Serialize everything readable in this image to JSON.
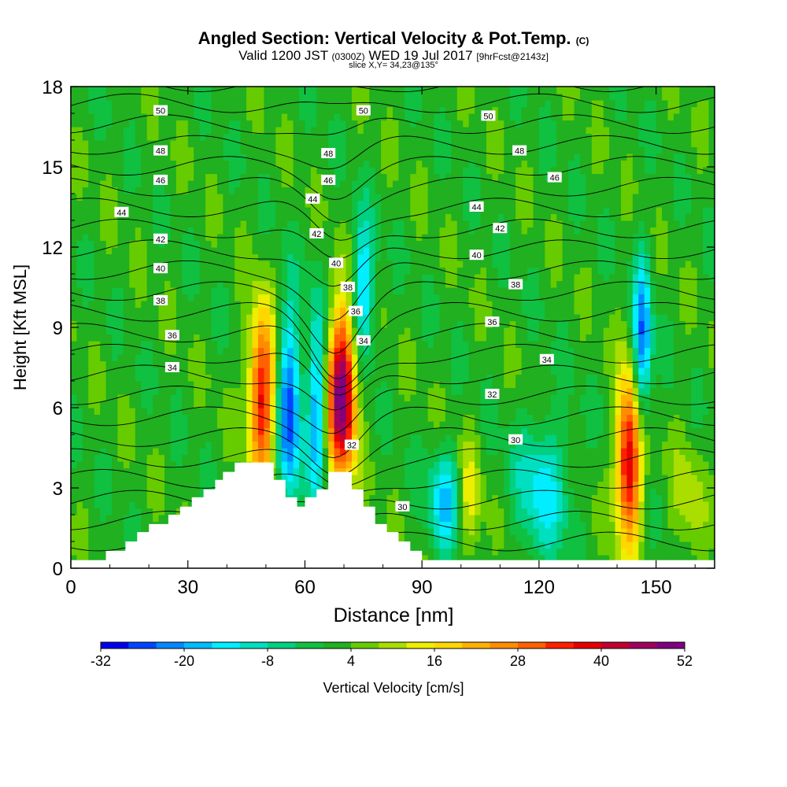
{
  "header": {
    "title": "Angled Section: Vertical Velocity & Pot.Temp.",
    "title_suffix": "(C)",
    "valid_prefix": "Valid 1200 JST",
    "valid_zulu": "(0300Z)",
    "valid_date": "WED 19 Jul 2017",
    "forecast": "[9hrFcst@2143z]",
    "slice": "slice X,Y= 34,23@135°"
  },
  "chart_data": {
    "type": "heatmap",
    "xlabel": "Distance [nm]",
    "ylabel": "Height [Kft MSL]",
    "xlim": [
      0,
      165
    ],
    "ylim": [
      0,
      18
    ],
    "xticks": [
      0,
      30,
      60,
      90,
      120,
      150
    ],
    "yticks": [
      0,
      3,
      6,
      9,
      12,
      15,
      18
    ],
    "colorbar": {
      "label": "Vertical Velocity [cm/s]",
      "ticks": [
        -32,
        -20,
        -8,
        4,
        16,
        28,
        40,
        52
      ],
      "colors": [
        "#0000ee",
        "#0044ff",
        "#0088ff",
        "#00bbff",
        "#00eeff",
        "#00e0c0",
        "#00d080",
        "#10c040",
        "#20b020",
        "#66cc00",
        "#aadd00",
        "#eeee00",
        "#ffd700",
        "#ffb000",
        "#ff8c00",
        "#ff6000",
        "#ff2000",
        "#e60000",
        "#c00030",
        "#a00060",
        "#800080"
      ]
    },
    "fields": [
      {
        "name": "updraft",
        "x": 49,
        "y": 6.5,
        "sx": 2.5,
        "sy": 2.2,
        "value": 36
      },
      {
        "name": "downdraft",
        "x": 56,
        "y": 6.0,
        "sx": 2.2,
        "sy": 2.6,
        "value": -28
      },
      {
        "name": "downdraft",
        "x": 63,
        "y": 6.0,
        "sx": 1.6,
        "sy": 2.6,
        "value": -22
      },
      {
        "name": "updraft",
        "x": 69.5,
        "y": 6.5,
        "sx": 2.5,
        "sy": 2.2,
        "value": 50
      },
      {
        "name": "downdraft",
        "x": 75,
        "y": 10.5,
        "sx": 2.0,
        "sy": 1.8,
        "value": -20
      },
      {
        "name": "downdraft",
        "x": 96,
        "y": 2.6,
        "sx": 3.0,
        "sy": 1.3,
        "value": -18
      },
      {
        "name": "updraft",
        "x": 102,
        "y": 2.6,
        "sx": 2.0,
        "sy": 1.6,
        "value": 12
      },
      {
        "name": "downdraft",
        "x": 121,
        "y": 3.0,
        "sx": 5.0,
        "sy": 1.8,
        "value": -15
      },
      {
        "name": "updraft",
        "x": 143,
        "y": 4.0,
        "sx": 2.3,
        "sy": 2.2,
        "value": 40
      },
      {
        "name": "downdraft",
        "x": 146.5,
        "y": 8.5,
        "sx": 1.6,
        "sy": 2.2,
        "value": -26
      },
      {
        "name": "updraft",
        "x": 158,
        "y": 2.5,
        "sx": 3.0,
        "sy": 1.5,
        "value": 8
      }
    ],
    "terrain": [
      [
        0,
        0.3
      ],
      [
        9,
        0.3
      ],
      [
        9,
        0.65
      ],
      [
        14,
        0.65
      ],
      [
        14,
        1.0
      ],
      [
        17,
        1.0
      ],
      [
        17,
        1.35
      ],
      [
        20,
        1.35
      ],
      [
        20,
        1.65
      ],
      [
        25,
        1.65
      ],
      [
        25,
        2.0
      ],
      [
        28,
        2.0
      ],
      [
        28,
        2.3
      ],
      [
        31,
        2.3
      ],
      [
        31,
        2.65
      ],
      [
        34,
        2.65
      ],
      [
        34,
        2.95
      ],
      [
        37,
        2.95
      ],
      [
        37,
        3.3
      ],
      [
        39,
        3.3
      ],
      [
        39,
        3.6
      ],
      [
        42,
        3.6
      ],
      [
        42,
        3.95
      ],
      [
        47,
        3.95
      ],
      [
        47,
        3.95
      ],
      [
        52,
        3.95
      ],
      [
        52,
        3.3
      ],
      [
        55,
        3.3
      ],
      [
        55,
        2.65
      ],
      [
        58,
        2.65
      ],
      [
        58,
        2.3
      ],
      [
        60,
        2.3
      ],
      [
        60,
        2.65
      ],
      [
        63,
        2.65
      ],
      [
        63,
        2.95
      ],
      [
        66,
        2.95
      ],
      [
        66,
        3.6
      ],
      [
        72,
        3.6
      ],
      [
        72,
        2.95
      ],
      [
        75,
        2.95
      ],
      [
        75,
        2.3
      ],
      [
        78,
        2.3
      ],
      [
        78,
        1.65
      ],
      [
        81,
        1.65
      ],
      [
        81,
        1.35
      ],
      [
        84,
        1.35
      ],
      [
        84,
        1.0
      ],
      [
        87,
        1.0
      ],
      [
        87,
        0.65
      ],
      [
        90,
        0.65
      ],
      [
        90,
        0.3
      ],
      [
        165,
        0.3
      ]
    ],
    "theta_levels": [
      29,
      30,
      31,
      32,
      33,
      34,
      35,
      36,
      37,
      38,
      39,
      40,
      41,
      42,
      43,
      44,
      45,
      46,
      47,
      48,
      49,
      50,
      51
    ],
    "contour_labels": [
      {
        "text": "50",
        "x": 23,
        "y": 17.1
      },
      {
        "text": "50",
        "x": 75,
        "y": 17.1
      },
      {
        "text": "50",
        "x": 107,
        "y": 16.9
      },
      {
        "text": "48",
        "x": 23,
        "y": 15.6
      },
      {
        "text": "48",
        "x": 66,
        "y": 15.5
      },
      {
        "text": "48",
        "x": 115,
        "y": 15.6
      },
      {
        "text": "46",
        "x": 23,
        "y": 14.5
      },
      {
        "text": "46",
        "x": 66,
        "y": 14.5
      },
      {
        "text": "46",
        "x": 124,
        "y": 14.6
      },
      {
        "text": "44",
        "x": 13,
        "y": 13.3
      },
      {
        "text": "44",
        "x": 62,
        "y": 13.8
      },
      {
        "text": "44",
        "x": 104,
        "y": 13.5
      },
      {
        "text": "42",
        "x": 23,
        "y": 12.3
      },
      {
        "text": "42",
        "x": 63,
        "y": 12.5
      },
      {
        "text": "42",
        "x": 110,
        "y": 12.7
      },
      {
        "text": "40",
        "x": 23,
        "y": 11.2
      },
      {
        "text": "40",
        "x": 68,
        "y": 11.4
      },
      {
        "text": "40",
        "x": 104,
        "y": 11.7
      },
      {
        "text": "38",
        "x": 23,
        "y": 10.0
      },
      {
        "text": "38",
        "x": 71,
        "y": 10.5
      },
      {
        "text": "38",
        "x": 114,
        "y": 10.6
      },
      {
        "text": "36",
        "x": 26,
        "y": 8.7
      },
      {
        "text": "36",
        "x": 73,
        "y": 9.6
      },
      {
        "text": "36",
        "x": 108,
        "y": 9.2
      },
      {
        "text": "34",
        "x": 26,
        "y": 7.5
      },
      {
        "text": "34",
        "x": 75,
        "y": 8.5
      },
      {
        "text": "34",
        "x": 122,
        "y": 7.8
      },
      {
        "text": "32",
        "x": 72,
        "y": 4.6
      },
      {
        "text": "32",
        "x": 108,
        "y": 6.5
      },
      {
        "text": "30",
        "x": 85,
        "y": 2.3
      },
      {
        "text": "30",
        "x": 114,
        "y": 4.8
      }
    ]
  }
}
